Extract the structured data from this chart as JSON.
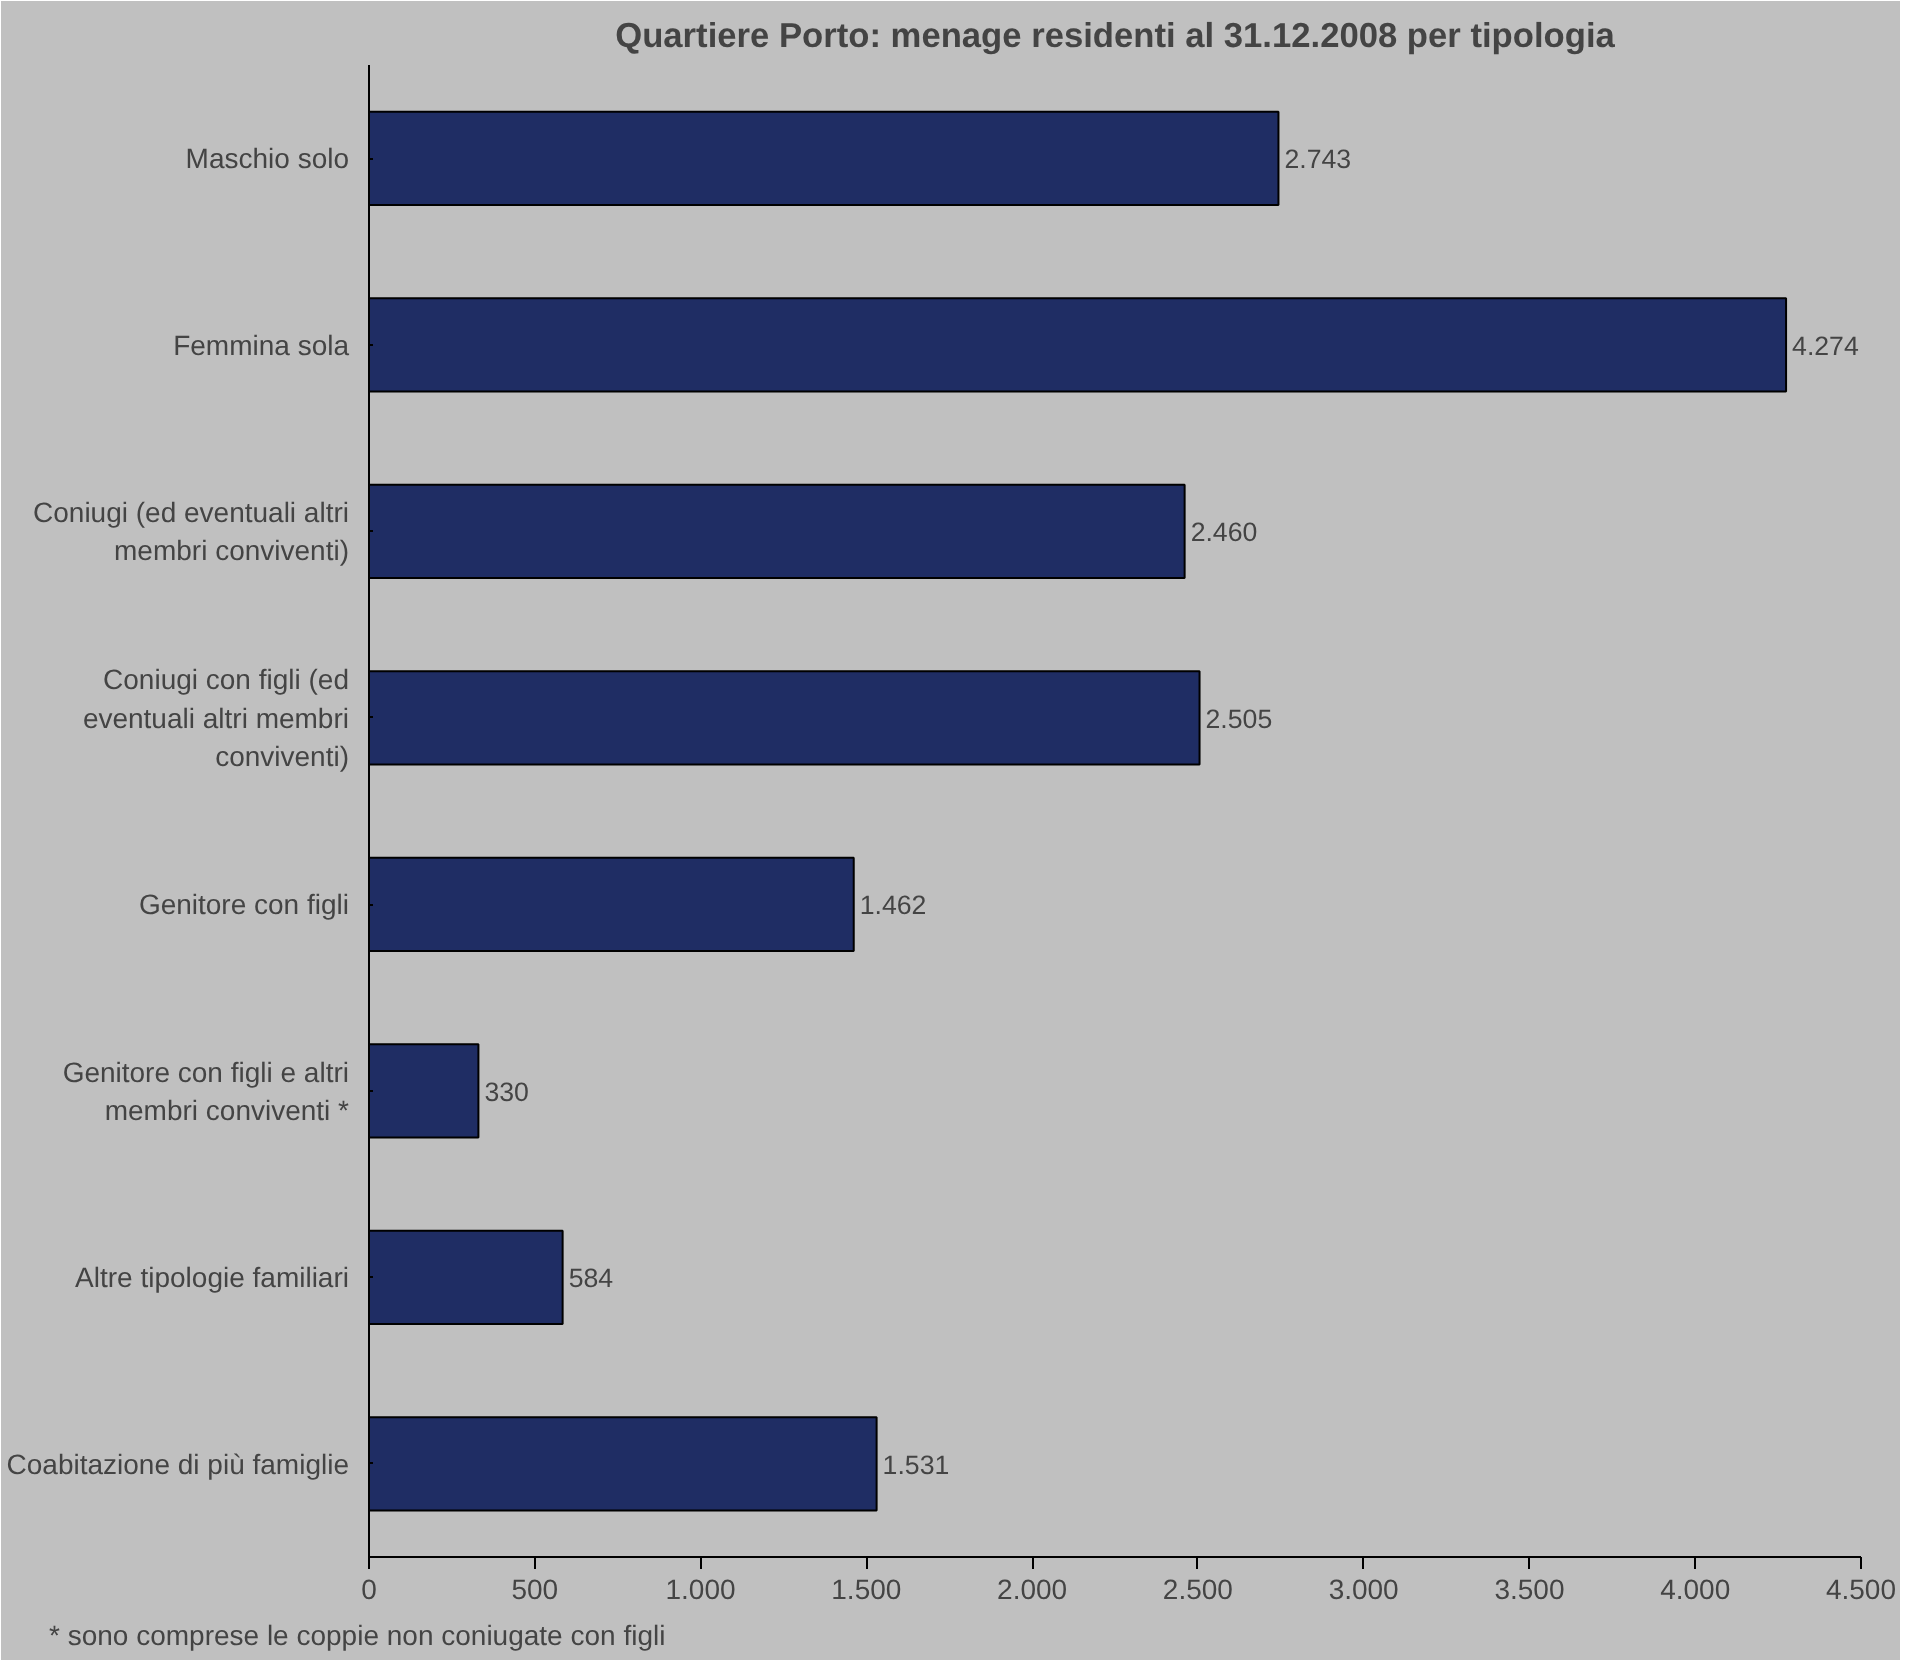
{
  "chart_data": {
    "type": "bar",
    "orientation": "horizontal",
    "title": "Quartiere Porto: menage residenti al 31.12.2008 per tipologia",
    "categories": [
      "Maschio solo",
      "Femmina sola",
      "Coniugi (ed eventuali altri membri conviventi)",
      "Coniugi con figli (ed eventuali altri membri conviventi)",
      "Genitore con figli",
      "Genitore con figli e altri membri conviventi *",
      "Altre tipologie familiari",
      "Coabitazione di più famiglie"
    ],
    "values": [
      2743,
      4274,
      2460,
      2505,
      1462,
      330,
      584,
      1531
    ],
    "value_labels": [
      "2.743",
      "4.274",
      "2.460",
      "2.505",
      "1.462",
      "330",
      "584",
      "1.531"
    ],
    "color": "#1f2d64",
    "xlim": [
      0,
      4500
    ],
    "xticks": [
      0,
      {
        "value": 500,
        "label": "500"
      },
      {
        "value": 1000,
        "label": "1.000"
      },
      {
        "value": 1500,
        "label": "1.500"
      },
      {
        "value": 2000,
        "label": "2.000"
      },
      {
        "value": 2500,
        "label": "2.500"
      },
      {
        "value": 3000,
        "label": "3.000"
      },
      {
        "value": 3500,
        "label": "3.500"
      },
      {
        "value": 4000,
        "label": "4.000"
      },
      {
        "value": 4500,
        "label": "4.500"
      }
    ],
    "grid": false,
    "annotations": [
      "* sono comprese le coppie non coniugate con figli"
    ]
  }
}
